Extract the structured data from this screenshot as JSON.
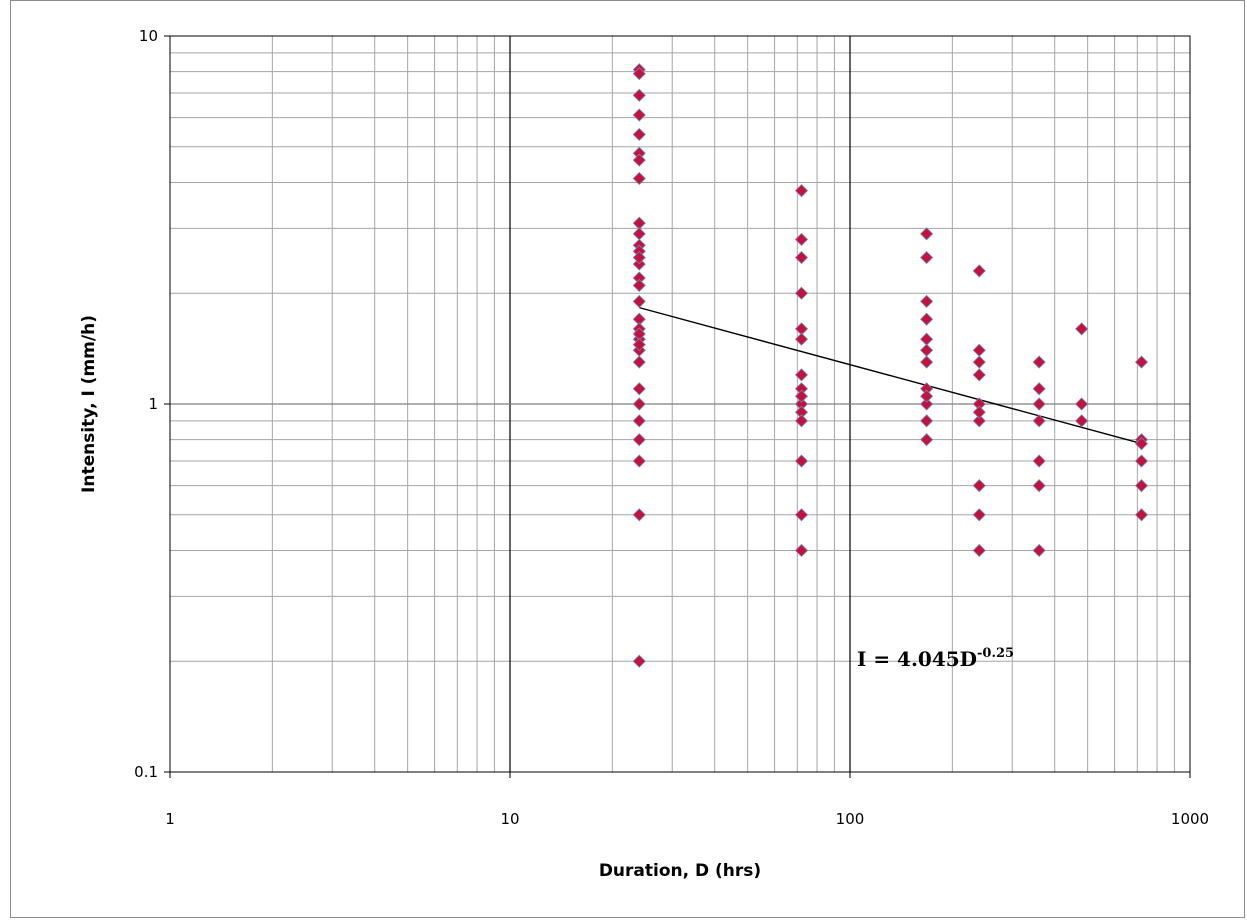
{
  "chart_data": {
    "type": "scatter",
    "title": "",
    "xlabel": "Duration, D (hrs)",
    "ylabel": "Intensity, I (mm/h)",
    "xscale": "log",
    "yscale": "log",
    "xlim": [
      1,
      1000
    ],
    "ylim": [
      0.1,
      10
    ],
    "x_tick_labels": [
      "1",
      "10",
      "100",
      "1000"
    ],
    "y_tick_labels": [
      "0.1",
      "1",
      "10"
    ],
    "grid": true,
    "legend": "none",
    "colors": {
      "marker_fill": "#c0143c",
      "marker_edge": "#7f7fbf",
      "trendline": "#000000",
      "major_grid": "#000000",
      "minor_grid": "#a6a6a6"
    },
    "annotation": {
      "base": "I = 4.045D",
      "exponent": "-0.25"
    },
    "trendline": {
      "coefficient": 4.045,
      "exponent": -0.25,
      "x_range": [
        24,
        720
      ]
    },
    "series": [
      {
        "x": [
          24,
          24,
          24,
          24,
          24,
          24,
          24,
          24,
          24,
          24,
          24,
          24,
          24,
          24,
          24,
          24,
          24,
          24,
          24,
          24,
          24,
          24,
          24,
          24,
          24,
          24,
          24,
          24,
          24,
          24,
          24
        ],
        "y": [
          8.1,
          7.9,
          6.9,
          6.1,
          5.4,
          4.8,
          4.6,
          4.1,
          3.1,
          2.9,
          2.7,
          2.6,
          2.4,
          2.2,
          2.1,
          1.9,
          1.7,
          1.6,
          1.5,
          1.4,
          1.3,
          1.1,
          1.0,
          0.9,
          0.8,
          0.7,
          0.5,
          0.2,
          2.5,
          1.55,
          1.45
        ]
      },
      {
        "x": [
          72,
          72,
          72,
          72,
          72,
          72,
          72,
          72,
          72,
          72,
          72,
          72,
          72,
          72,
          72
        ],
        "y": [
          3.8,
          2.8,
          2.5,
          2.0,
          1.6,
          1.5,
          1.2,
          1.1,
          1.0,
          0.95,
          0.9,
          0.7,
          0.5,
          0.4,
          1.05
        ]
      },
      {
        "x": [
          168,
          168,
          168,
          168,
          168,
          168,
          168,
          168,
          168,
          168,
          168,
          168
        ],
        "y": [
          2.9,
          2.5,
          1.9,
          1.7,
          1.5,
          1.4,
          1.3,
          1.1,
          1.0,
          0.9,
          0.8,
          1.05
        ]
      },
      {
        "x": [
          240,
          240,
          240,
          240,
          240,
          240,
          240,
          240,
          240,
          240
        ],
        "y": [
          2.3,
          1.4,
          1.3,
          1.2,
          1.0,
          0.9,
          0.6,
          0.5,
          0.4,
          0.95
        ]
      },
      {
        "x": [
          360,
          360,
          360,
          360,
          360,
          360,
          360
        ],
        "y": [
          1.3,
          1.1,
          1.0,
          0.9,
          0.7,
          0.6,
          0.4
        ]
      },
      {
        "x": [
          480,
          480,
          480
        ],
        "y": [
          1.6,
          1.0,
          0.9
        ]
      },
      {
        "x": [
          720,
          720,
          720,
          720,
          720,
          720
        ],
        "y": [
          1.3,
          0.8,
          0.78,
          0.7,
          0.6,
          0.5
        ]
      }
    ]
  }
}
